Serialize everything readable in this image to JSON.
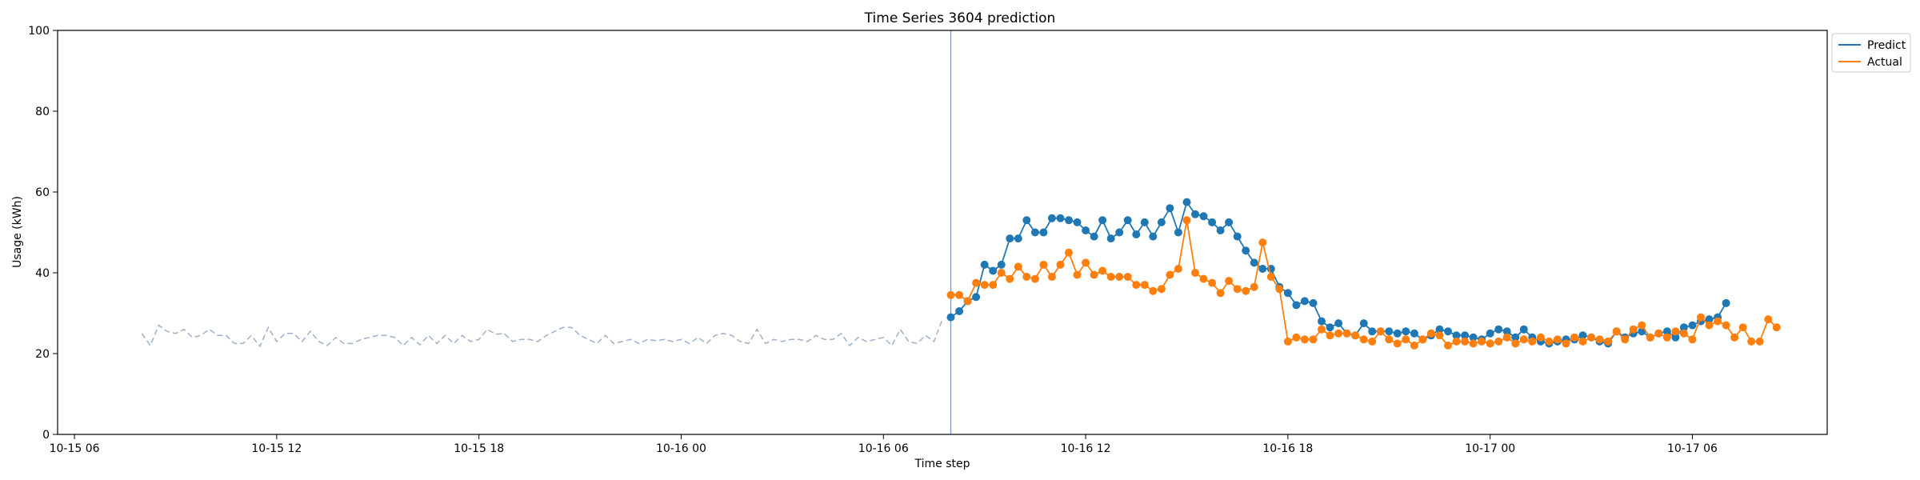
{
  "chart_data": {
    "type": "line",
    "title": "Time Series 3604 prediction",
    "xlabel": "Time step",
    "ylabel": "Usage (kWh)",
    "ylim": [
      0,
      100
    ],
    "yticks": [
      0,
      20,
      40,
      60,
      80,
      100
    ],
    "xlim": [
      "2023-10-15 05:30",
      "2023-10-17 10:00"
    ],
    "xticks": [
      {
        "t": "2023-10-15 06:00",
        "label": "10-15 06"
      },
      {
        "t": "2023-10-15 12:00",
        "label": "10-15 12"
      },
      {
        "t": "2023-10-15 18:00",
        "label": "10-15 18"
      },
      {
        "t": "2023-10-16 00:00",
        "label": "10-16 00"
      },
      {
        "t": "2023-10-16 06:00",
        "label": "10-16 06"
      },
      {
        "t": "2023-10-16 12:00",
        "label": "10-16 12"
      },
      {
        "t": "2023-10-16 18:00",
        "label": "10-16 18"
      },
      {
        "t": "2023-10-17 00:00",
        "label": "10-17 00"
      },
      {
        "t": "2023-10-17 06:00",
        "label": "10-17 06"
      }
    ],
    "grid": false,
    "legend_position": "top-right outside",
    "forecast_start": "2023-10-16 08:00",
    "colors": {
      "predict": "#1f77b4",
      "actual": "#ff7f0e",
      "history": "#9fb0c8",
      "divider": "#7f96c8"
    },
    "history": {
      "start": "2023-10-15 08:00",
      "step_minutes": 15,
      "values": [
        25,
        22,
        27,
        25.5,
        25,
        26,
        24,
        24.5,
        26,
        24.5,
        24.5,
        22.5,
        22.5,
        24.5,
        21.8,
        26.5,
        23,
        25,
        25,
        23,
        25.5,
        23,
        22,
        24,
        22.5,
        22.5,
        23.5,
        24,
        24.5,
        24.5,
        24,
        22,
        24,
        22.2,
        24.5,
        22.5,
        24.5,
        22.5,
        24.5,
        23,
        23.5,
        26,
        24.8,
        25,
        23,
        23.5,
        23.5,
        23,
        24.5,
        25.5,
        26.5,
        26.5,
        24.5,
        23.5,
        22.5,
        24.5,
        22.5,
        23,
        23.5,
        22.5,
        23.5,
        23.2,
        23.5,
        23,
        23.5,
        22.5,
        24,
        22.5,
        24.5,
        25,
        24.5,
        23,
        22.5,
        26,
        22.5,
        23.5,
        23,
        23.5,
        23.5,
        23,
        24.5,
        23.5,
        23.5,
        25,
        22,
        24,
        23,
        23.5,
        24,
        22,
        26,
        23,
        22.5,
        24.5,
        23,
        28.5
      ]
    },
    "series": [
      {
        "name": "Predict",
        "start": "2023-10-16 08:00",
        "step_minutes": 15,
        "values": [
          29,
          30.5,
          33,
          34,
          42,
          40.5,
          42,
          48.5,
          48.5,
          53,
          50,
          50,
          53.5,
          53.5,
          53,
          52.5,
          50.5,
          49,
          53,
          48.5,
          50,
          53,
          49.5,
          52.5,
          49,
          52.5,
          56,
          50,
          57.5,
          54.5,
          54,
          52.5,
          50.5,
          52.5,
          49,
          45.5,
          42.5,
          41,
          41,
          36.5,
          35,
          32,
          33,
          32.5,
          28,
          26.5,
          27.5,
          25,
          24.5,
          27.5,
          25.5,
          25.5,
          25.5,
          25,
          25.5,
          25,
          23.5,
          24.5,
          26,
          25.5,
          24.5,
          24.5,
          24,
          23.5,
          25,
          26,
          25.5,
          24,
          26,
          24,
          23,
          22.5,
          23,
          23.5,
          23.5,
          24.5,
          24,
          23,
          22.5,
          25.5,
          24,
          25,
          25.5,
          24,
          25,
          25.5,
          24,
          26.5,
          27,
          28,
          28.5,
          29,
          32.5
        ]
      },
      {
        "name": "Actual",
        "start": "2023-10-16 08:00",
        "step_minutes": 15,
        "values": [
          34.5,
          34.5,
          33,
          37.5,
          37,
          37,
          40,
          38.5,
          41.5,
          39,
          38.5,
          42,
          39,
          42,
          45,
          39.5,
          42.5,
          39.5,
          40.5,
          39,
          39,
          39,
          37,
          37,
          35.5,
          36,
          39.5,
          41,
          53,
          40,
          38.5,
          37.5,
          35,
          38,
          36,
          35.5,
          36.5,
          47.5,
          39,
          36,
          23,
          24,
          23.5,
          23.5,
          26,
          24.5,
          25,
          25,
          24.5,
          23.5,
          23,
          25.5,
          23.5,
          22.5,
          23.5,
          22,
          23.5,
          25,
          24.5,
          22,
          23,
          23,
          22.5,
          23,
          22.5,
          23,
          24,
          22.5,
          23.5,
          23,
          24,
          23,
          23.5,
          22.5,
          24,
          23,
          24,
          23.5,
          23,
          25.5,
          23.5,
          26,
          27,
          24,
          25,
          24,
          25.5,
          25,
          23.5,
          29,
          27,
          28,
          27,
          24,
          26.5,
          23,
          23,
          28.5,
          26.5
        ]
      }
    ]
  }
}
